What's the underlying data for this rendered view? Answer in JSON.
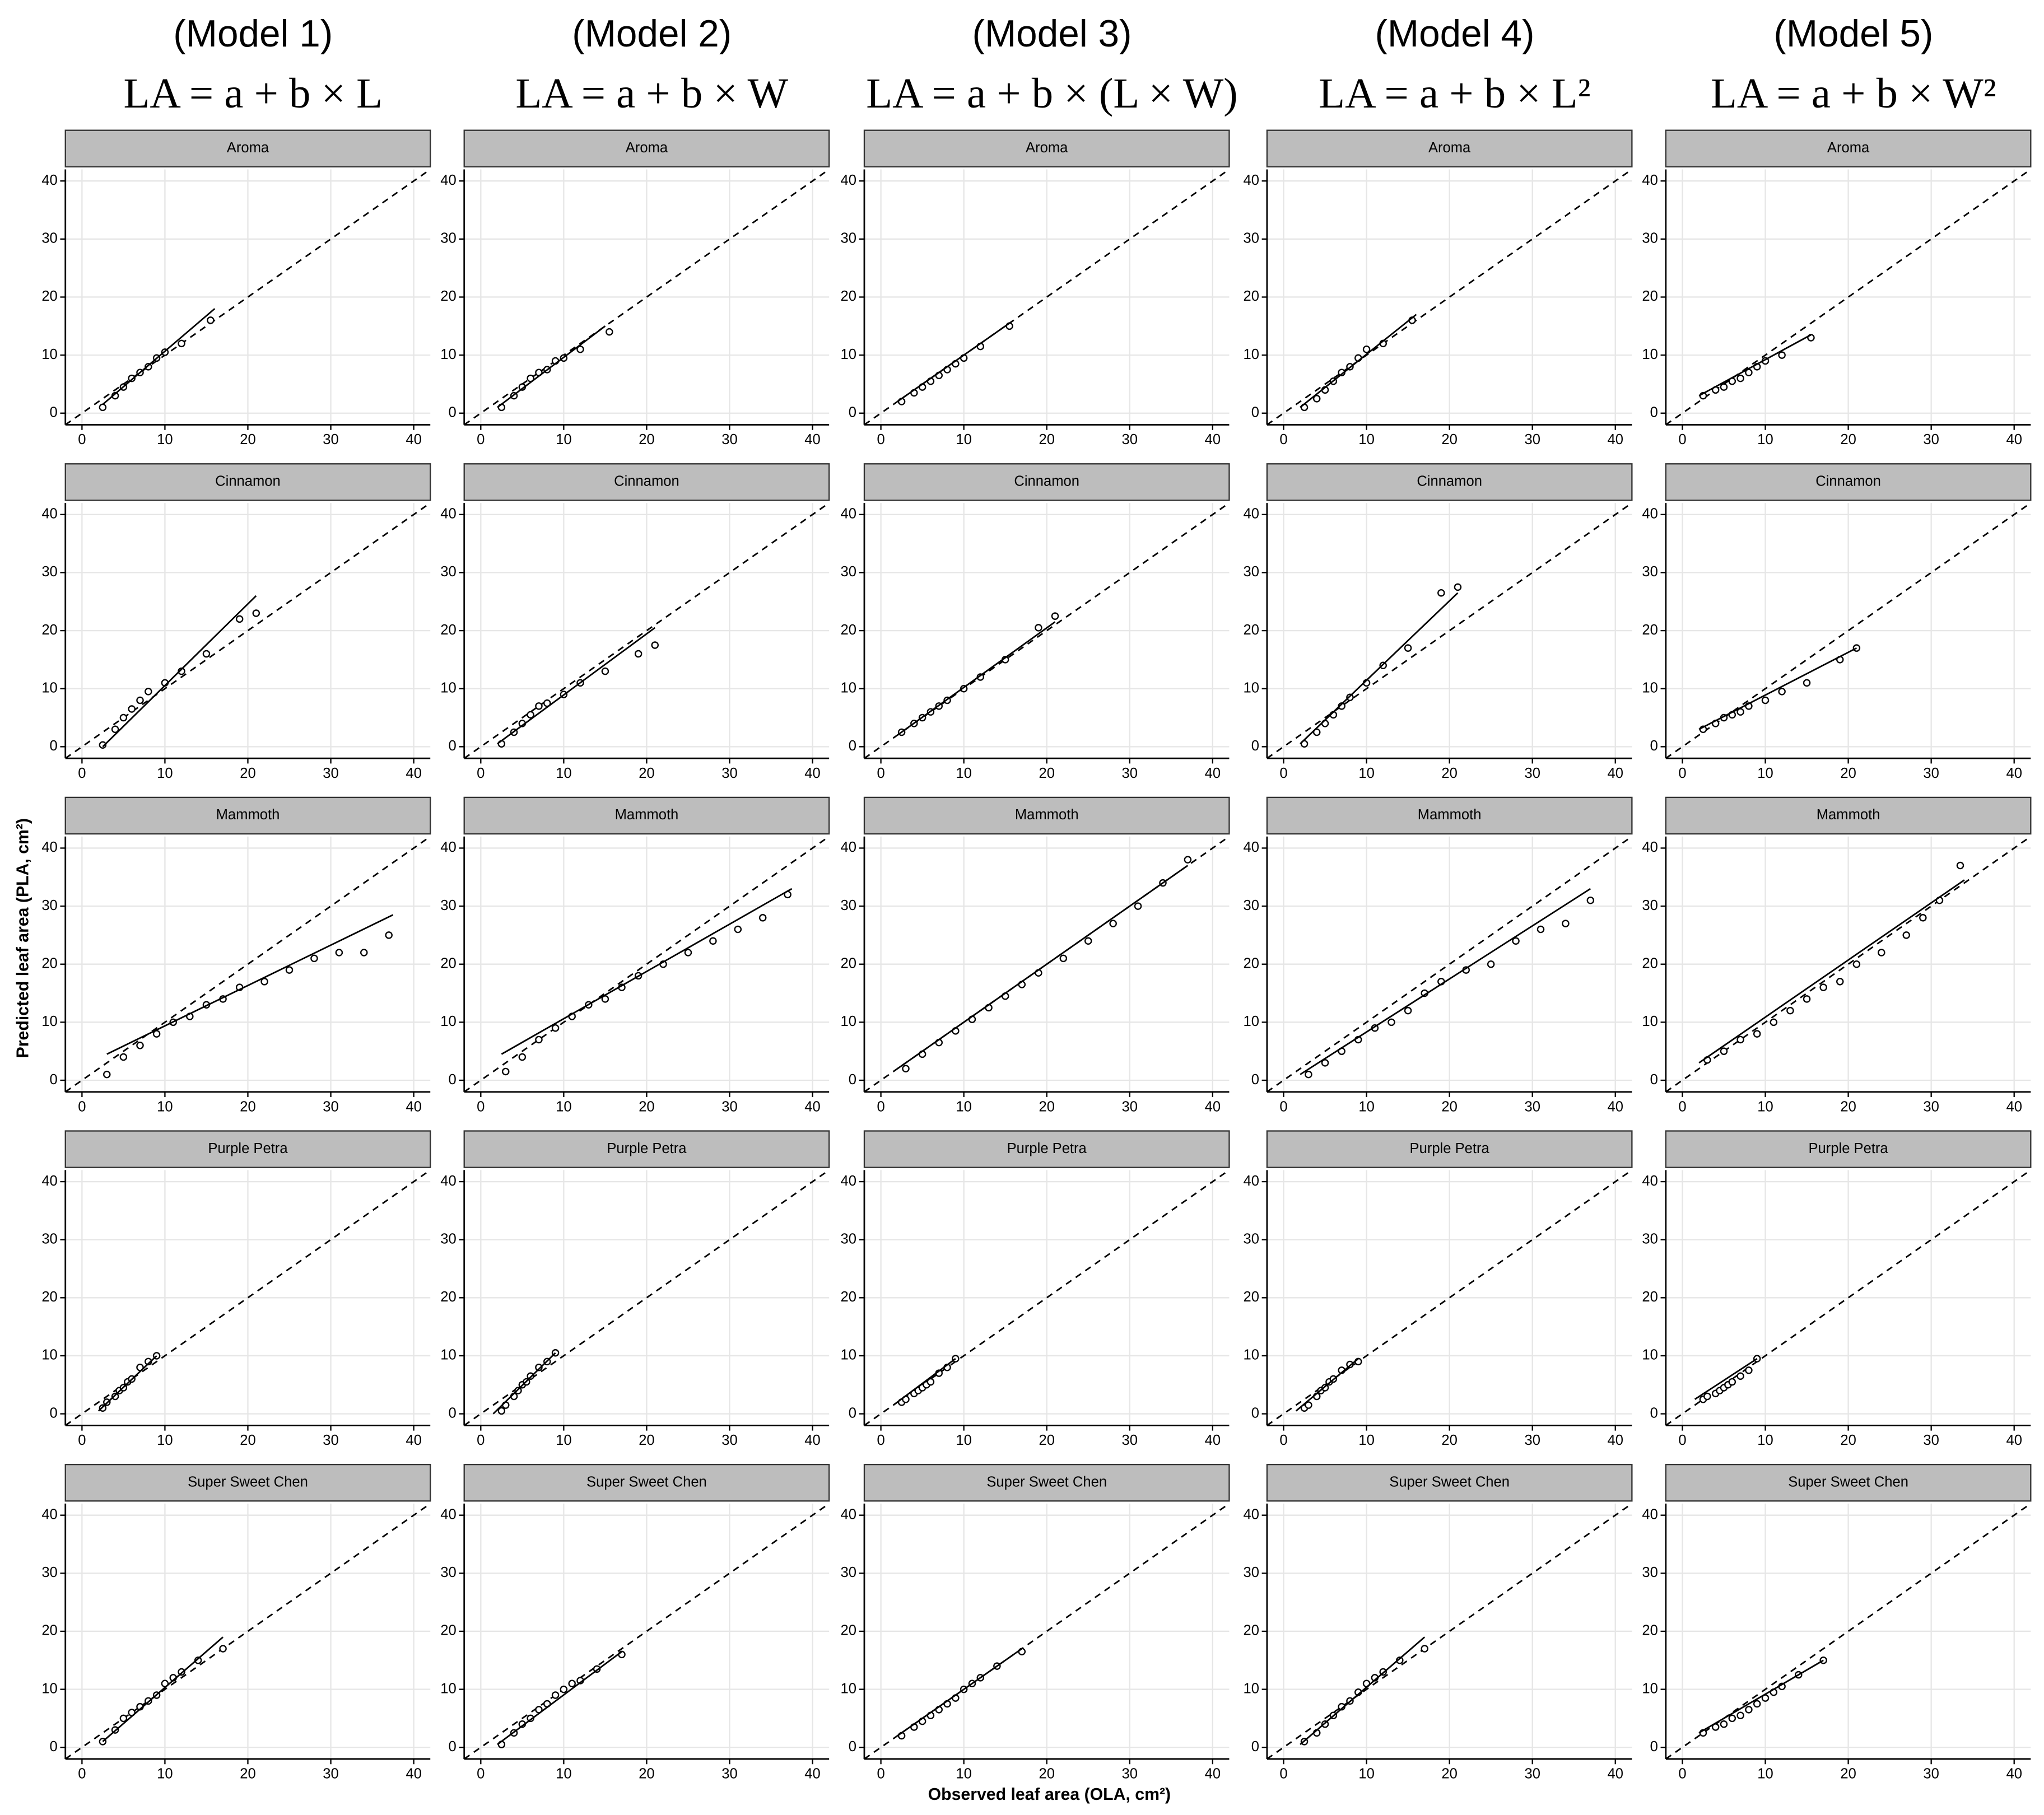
{
  "chart_data": {
    "type": "scatter",
    "columns": [
      {
        "title": "(Model 1)",
        "formula": "LA = a + b × L"
      },
      {
        "title": "(Model 2)",
        "formula": "LA = a + b × W"
      },
      {
        "title": "(Model 3)",
        "formula": "LA = a + b × (L × W)"
      },
      {
        "title": "(Model 4)",
        "formula": "LA = a + b × L²"
      },
      {
        "title": "(Model 5)",
        "formula": "LA = a + b × W²"
      }
    ],
    "rows": [
      "Aroma",
      "Cinnamon",
      "Mammoth",
      "Purple Petra",
      "Super Sweet Chen"
    ],
    "xlabel": "Observed leaf area (OLA,  cm²)",
    "ylabel": "Predicted leaf area (PLA,  cm²)",
    "xlim": [
      -2,
      42
    ],
    "ylim": [
      -2,
      42
    ],
    "xticks": [
      0,
      10,
      20,
      30,
      40
    ],
    "yticks": [
      0,
      10,
      20,
      30,
      40
    ],
    "grid": true,
    "point_color": "#000000",
    "line_color": "#000000",
    "panels": [
      [
        {
          "x": [
            2.5,
            4,
            5,
            6,
            7,
            8,
            9,
            10,
            12,
            15.5
          ],
          "y": [
            1,
            3,
            4.5,
            6,
            7,
            8,
            9.5,
            10.5,
            12,
            16
          ],
          "fit_x": [
            2.5,
            16
          ],
          "fit_y": [
            1.5,
            18
          ]
        },
        {
          "x": [
            2.5,
            4,
            5,
            6,
            7,
            8,
            9,
            10,
            12,
            15.5
          ],
          "y": [
            1,
            3,
            4.5,
            6,
            7,
            7.5,
            9,
            9.5,
            11,
            14
          ],
          "fit_x": [
            2,
            15
          ],
          "fit_y": [
            1,
            15
          ]
        },
        {
          "x": [
            2.5,
            4,
            5,
            6,
            7,
            8,
            9,
            10,
            12,
            15.5
          ],
          "y": [
            2,
            3.5,
            4.5,
            5.5,
            6.5,
            7.5,
            8.5,
            9.5,
            11.5,
            15
          ],
          "fit_x": [
            2,
            15.5
          ],
          "fit_y": [
            2,
            15.5
          ]
        },
        {
          "x": [
            2.5,
            4,
            5,
            6,
            7,
            8,
            9,
            10,
            12,
            15.5
          ],
          "y": [
            1,
            2.5,
            4,
            5.5,
            7,
            8,
            9.5,
            11,
            12,
            16
          ],
          "fit_x": [
            2,
            16
          ],
          "fit_y": [
            1,
            17
          ]
        },
        {
          "x": [
            2.5,
            4,
            5,
            6,
            7,
            8,
            9,
            10,
            12,
            15.5
          ],
          "y": [
            3,
            4,
            4.5,
            5.5,
            6,
            7,
            8,
            9,
            10,
            13
          ],
          "fit_x": [
            2,
            15.5
          ],
          "fit_y": [
            3,
            13.5
          ]
        }
      ],
      [
        {
          "x": [
            2.5,
            4,
            5,
            6,
            7,
            8,
            10,
            12,
            15,
            19,
            21
          ],
          "y": [
            0.3,
            3,
            5,
            6.5,
            8,
            9.5,
            11,
            13,
            16,
            22,
            23
          ],
          "fit_x": [
            2.5,
            21
          ],
          "fit_y": [
            0,
            26
          ]
        },
        {
          "x": [
            2.5,
            4,
            5,
            6,
            7,
            8,
            10,
            12,
            15,
            19,
            21
          ],
          "y": [
            0.5,
            2.5,
            4,
            5.5,
            7,
            7.5,
            9,
            11,
            13,
            16,
            17.5
          ],
          "fit_x": [
            2,
            21
          ],
          "fit_y": [
            0.5,
            20.5
          ]
        },
        {
          "x": [
            2.5,
            4,
            5,
            6,
            7,
            8,
            10,
            12,
            15,
            19,
            21
          ],
          "y": [
            2.5,
            4,
            5,
            6,
            7,
            8,
            10,
            12,
            15,
            20.5,
            22.5
          ],
          "fit_x": [
            2,
            21
          ],
          "fit_y": [
            2,
            21.5
          ]
        },
        {
          "x": [
            2.5,
            4,
            5,
            6,
            7,
            8,
            10,
            12,
            15,
            19,
            21
          ],
          "y": [
            0.5,
            2.5,
            4,
            5.5,
            7,
            8.5,
            11,
            14,
            17,
            26.5,
            27.5
          ],
          "fit_x": [
            2,
            21
          ],
          "fit_y": [
            0.5,
            26.5
          ]
        },
        {
          "x": [
            2.5,
            4,
            5,
            6,
            7,
            8,
            10,
            12,
            15,
            19,
            21
          ],
          "y": [
            3,
            4,
            5,
            5.5,
            6,
            7,
            8,
            9.5,
            11,
            15,
            17
          ],
          "fit_x": [
            2,
            21
          ],
          "fit_y": [
            3,
            17
          ]
        }
      ],
      [
        {
          "x": [
            3,
            5,
            7,
            9,
            11,
            13,
            15,
            17,
            19,
            22,
            25,
            28,
            31,
            34,
            37
          ],
          "y": [
            1,
            4,
            6,
            8,
            10,
            11,
            13,
            14,
            16,
            17,
            19,
            21,
            22,
            22,
            25
          ],
          "fit_x": [
            3,
            37.5
          ],
          "fit_y": [
            4.5,
            28.5
          ]
        },
        {
          "x": [
            3,
            5,
            7,
            9,
            11,
            13,
            15,
            17,
            19,
            22,
            25,
            28,
            31,
            34,
            37
          ],
          "y": [
            1.5,
            4,
            7,
            9,
            11,
            13,
            14,
            16,
            18,
            20,
            22,
            24,
            26,
            28,
            32
          ],
          "fit_x": [
            2.5,
            37.5
          ],
          "fit_y": [
            4.5,
            33
          ]
        },
        {
          "x": [
            3,
            5,
            7,
            9,
            11,
            13,
            15,
            17,
            19,
            22,
            25,
            28,
            31,
            34,
            37
          ],
          "y": [
            2,
            4.5,
            6.5,
            8.5,
            10.5,
            12.5,
            14.5,
            16.5,
            18.5,
            21,
            24,
            27,
            30,
            34,
            38
          ],
          "fit_x": [
            2,
            37
          ],
          "fit_y": [
            2,
            37
          ]
        },
        {
          "x": [
            3,
            5,
            7,
            9,
            11,
            13,
            15,
            17,
            19,
            22,
            25,
            28,
            31,
            34,
            37
          ],
          "y": [
            1,
            3,
            5,
            7,
            9,
            10,
            12,
            15,
            17,
            19,
            20,
            24,
            26,
            27,
            31
          ],
          "fit_x": [
            2,
            37
          ],
          "fit_y": [
            1,
            33
          ]
        },
        {
          "x": [
            3,
            5,
            7,
            9,
            11,
            13,
            15,
            17,
            19,
            21,
            24,
            27,
            29,
            31,
            33.5
          ],
          "y": [
            3.5,
            5,
            7,
            8,
            10,
            12,
            14,
            16,
            17,
            20,
            22,
            25,
            28,
            31,
            37
          ],
          "fit_x": [
            2,
            34
          ],
          "fit_y": [
            3,
            34.5
          ]
        }
      ],
      [
        {
          "x": [
            2.5,
            3,
            4,
            4.5,
            5,
            5.5,
            6,
            7,
            8,
            9
          ],
          "y": [
            1,
            2,
            3,
            4,
            4.5,
            5.5,
            6,
            8,
            9,
            10
          ],
          "fit_x": [
            2,
            9
          ],
          "fit_y": [
            0.5,
            10
          ]
        },
        {
          "x": [
            2.5,
            3,
            4,
            4.5,
            5,
            5.5,
            6,
            7,
            8,
            9
          ],
          "y": [
            0.5,
            1.5,
            3,
            4,
            5,
            5.5,
            6.5,
            8,
            9,
            10.5
          ],
          "fit_x": [
            1.5,
            9
          ],
          "fit_y": [
            0,
            10.5
          ]
        },
        {
          "x": [
            2.5,
            3,
            4,
            4.5,
            5,
            5.5,
            6,
            7,
            8,
            9
          ],
          "y": [
            2,
            2.5,
            3.5,
            4,
            4.5,
            5,
            5.5,
            7,
            8,
            9.5
          ],
          "fit_x": [
            1.5,
            9
          ],
          "fit_y": [
            1.5,
            9.5
          ]
        },
        {
          "x": [
            2.5,
            3,
            4,
            4.5,
            5,
            5.5,
            6,
            7,
            8,
            9
          ],
          "y": [
            1,
            1.5,
            3,
            4,
            4.5,
            5.5,
            6,
            7.5,
            8.5,
            9
          ],
          "fit_x": [
            1.5,
            9
          ],
          "fit_y": [
            0.5,
            9.5
          ]
        },
        {
          "x": [
            2.5,
            3,
            4,
            4.5,
            5,
            5.5,
            6,
            7,
            8,
            9
          ],
          "y": [
            2.5,
            3,
            3.5,
            4,
            4.5,
            5,
            5.5,
            6.5,
            7.5,
            9.5
          ],
          "fit_x": [
            1.5,
            9
          ],
          "fit_y": [
            2.5,
            9.5
          ]
        }
      ],
      [
        {
          "x": [
            2.5,
            4,
            5,
            6,
            7,
            8,
            9,
            10,
            11,
            12,
            14,
            17
          ],
          "y": [
            1,
            3,
            5,
            6,
            7,
            8,
            9,
            11,
            12,
            13,
            15,
            17
          ],
          "fit_x": [
            2.5,
            17
          ],
          "fit_y": [
            1,
            19
          ]
        },
        {
          "x": [
            2.5,
            4,
            5,
            6,
            7,
            8,
            9,
            10,
            11,
            12,
            14,
            17
          ],
          "y": [
            0.5,
            2.5,
            4,
            5,
            6.5,
            7.5,
            9,
            10,
            11,
            11.5,
            13.5,
            16
          ],
          "fit_x": [
            2,
            17
          ],
          "fit_y": [
            0.5,
            16.5
          ]
        },
        {
          "x": [
            2.5,
            4,
            5,
            6,
            7,
            8,
            9,
            10,
            11,
            12,
            14,
            17
          ],
          "y": [
            2,
            3.5,
            4.5,
            5.5,
            6.5,
            7.5,
            8.5,
            10,
            11,
            12,
            14,
            16.5
          ],
          "fit_x": [
            2,
            17
          ],
          "fit_y": [
            2,
            17
          ]
        },
        {
          "x": [
            2.5,
            4,
            5,
            6,
            7,
            8,
            9,
            10,
            11,
            12,
            14,
            17
          ],
          "y": [
            1,
            2.5,
            4,
            5.5,
            7,
            8,
            9.5,
            11,
            12,
            13,
            15,
            17
          ],
          "fit_x": [
            2,
            17
          ],
          "fit_y": [
            0.5,
            19
          ]
        },
        {
          "x": [
            2.5,
            4,
            5,
            6,
            7,
            8,
            9,
            10,
            11,
            12,
            14,
            17
          ],
          "y": [
            2.5,
            3.5,
            4,
            5,
            5.5,
            6.5,
            7.5,
            8.5,
            9.5,
            10.5,
            12.5,
            15
          ],
          "fit_x": [
            2,
            17
          ],
          "fit_y": [
            2.5,
            15
          ]
        }
      ]
    ]
  }
}
